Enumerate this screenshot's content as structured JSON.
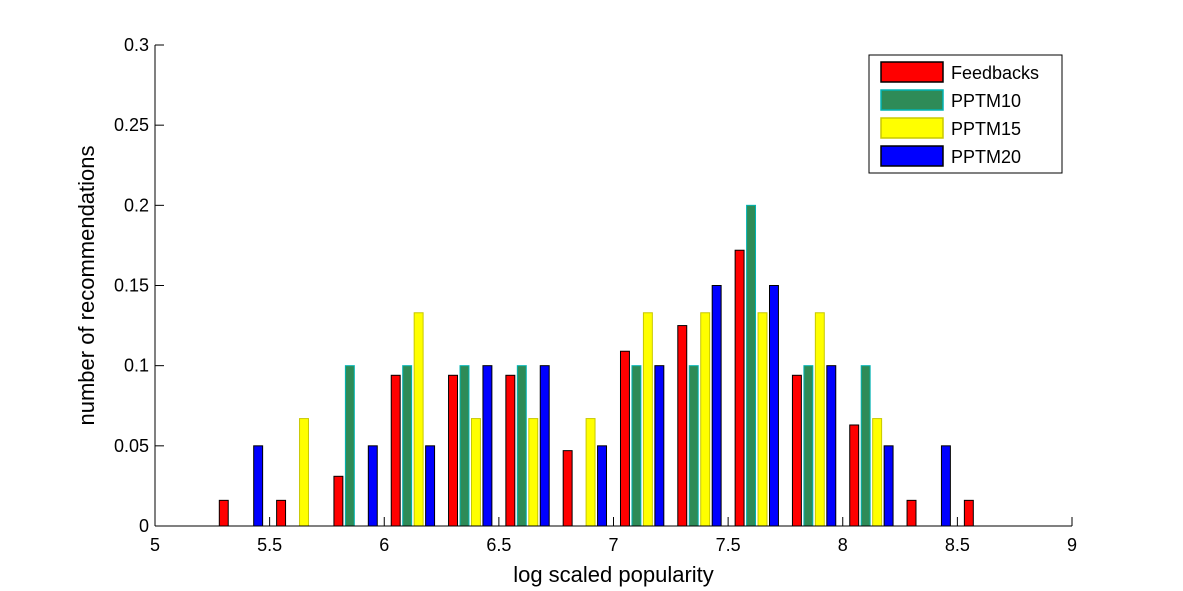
{
  "chart_data": {
    "type": "bar",
    "xlabel": "log scaled popularity",
    "ylabel": "number of recommendations",
    "xlim": [
      5,
      9
    ],
    "ylim": [
      0,
      0.3
    ],
    "xticks": [
      "5",
      "5.5",
      "6",
      "6.5",
      "7",
      "7.5",
      "8",
      "8.5",
      "9"
    ],
    "yticks": [
      "0",
      "0.05",
      "0.1",
      "0.15",
      "0.2",
      "0.25",
      "0.3"
    ],
    "grid": false,
    "legend_position": "top-right",
    "bin_width": 0.25,
    "x": [
      5.125,
      5.375,
      5.625,
      5.875,
      6.125,
      6.375,
      6.625,
      6.875,
      7.125,
      7.375,
      7.625,
      7.875,
      8.125,
      8.375,
      8.625,
      8.875
    ],
    "series": [
      {
        "name": "Feedbacks",
        "color": "#ff0000",
        "edge": "#000000",
        "values": [
          0,
          0.016,
          0.016,
          0.031,
          0.094,
          0.094,
          0.094,
          0.047,
          0.109,
          0.125,
          0.172,
          0.094,
          0.063,
          0.016,
          0.016,
          0
        ]
      },
      {
        "name": "PPTM10",
        "color": "#2e8b57",
        "edge": "#00b3b3",
        "values": [
          0,
          0,
          0,
          0.1,
          0.1,
          0.1,
          0.1,
          0,
          0.1,
          0.1,
          0.2,
          0.1,
          0.1,
          0,
          0,
          0
        ]
      },
      {
        "name": "PPTM15",
        "color": "#ffff00",
        "edge": "#c8c800",
        "values": [
          0,
          0,
          0.067,
          0,
          0.133,
          0.067,
          0.067,
          0.067,
          0.133,
          0.133,
          0.133,
          0.133,
          0.067,
          0,
          0,
          0
        ]
      },
      {
        "name": "PPTM20",
        "color": "#0000ff",
        "edge": "#000000",
        "values": [
          0,
          0.05,
          0,
          0.05,
          0.05,
          0.1,
          0.1,
          0.05,
          0.1,
          0.15,
          0.15,
          0.1,
          0.05,
          0.05,
          0,
          0
        ]
      }
    ]
  }
}
